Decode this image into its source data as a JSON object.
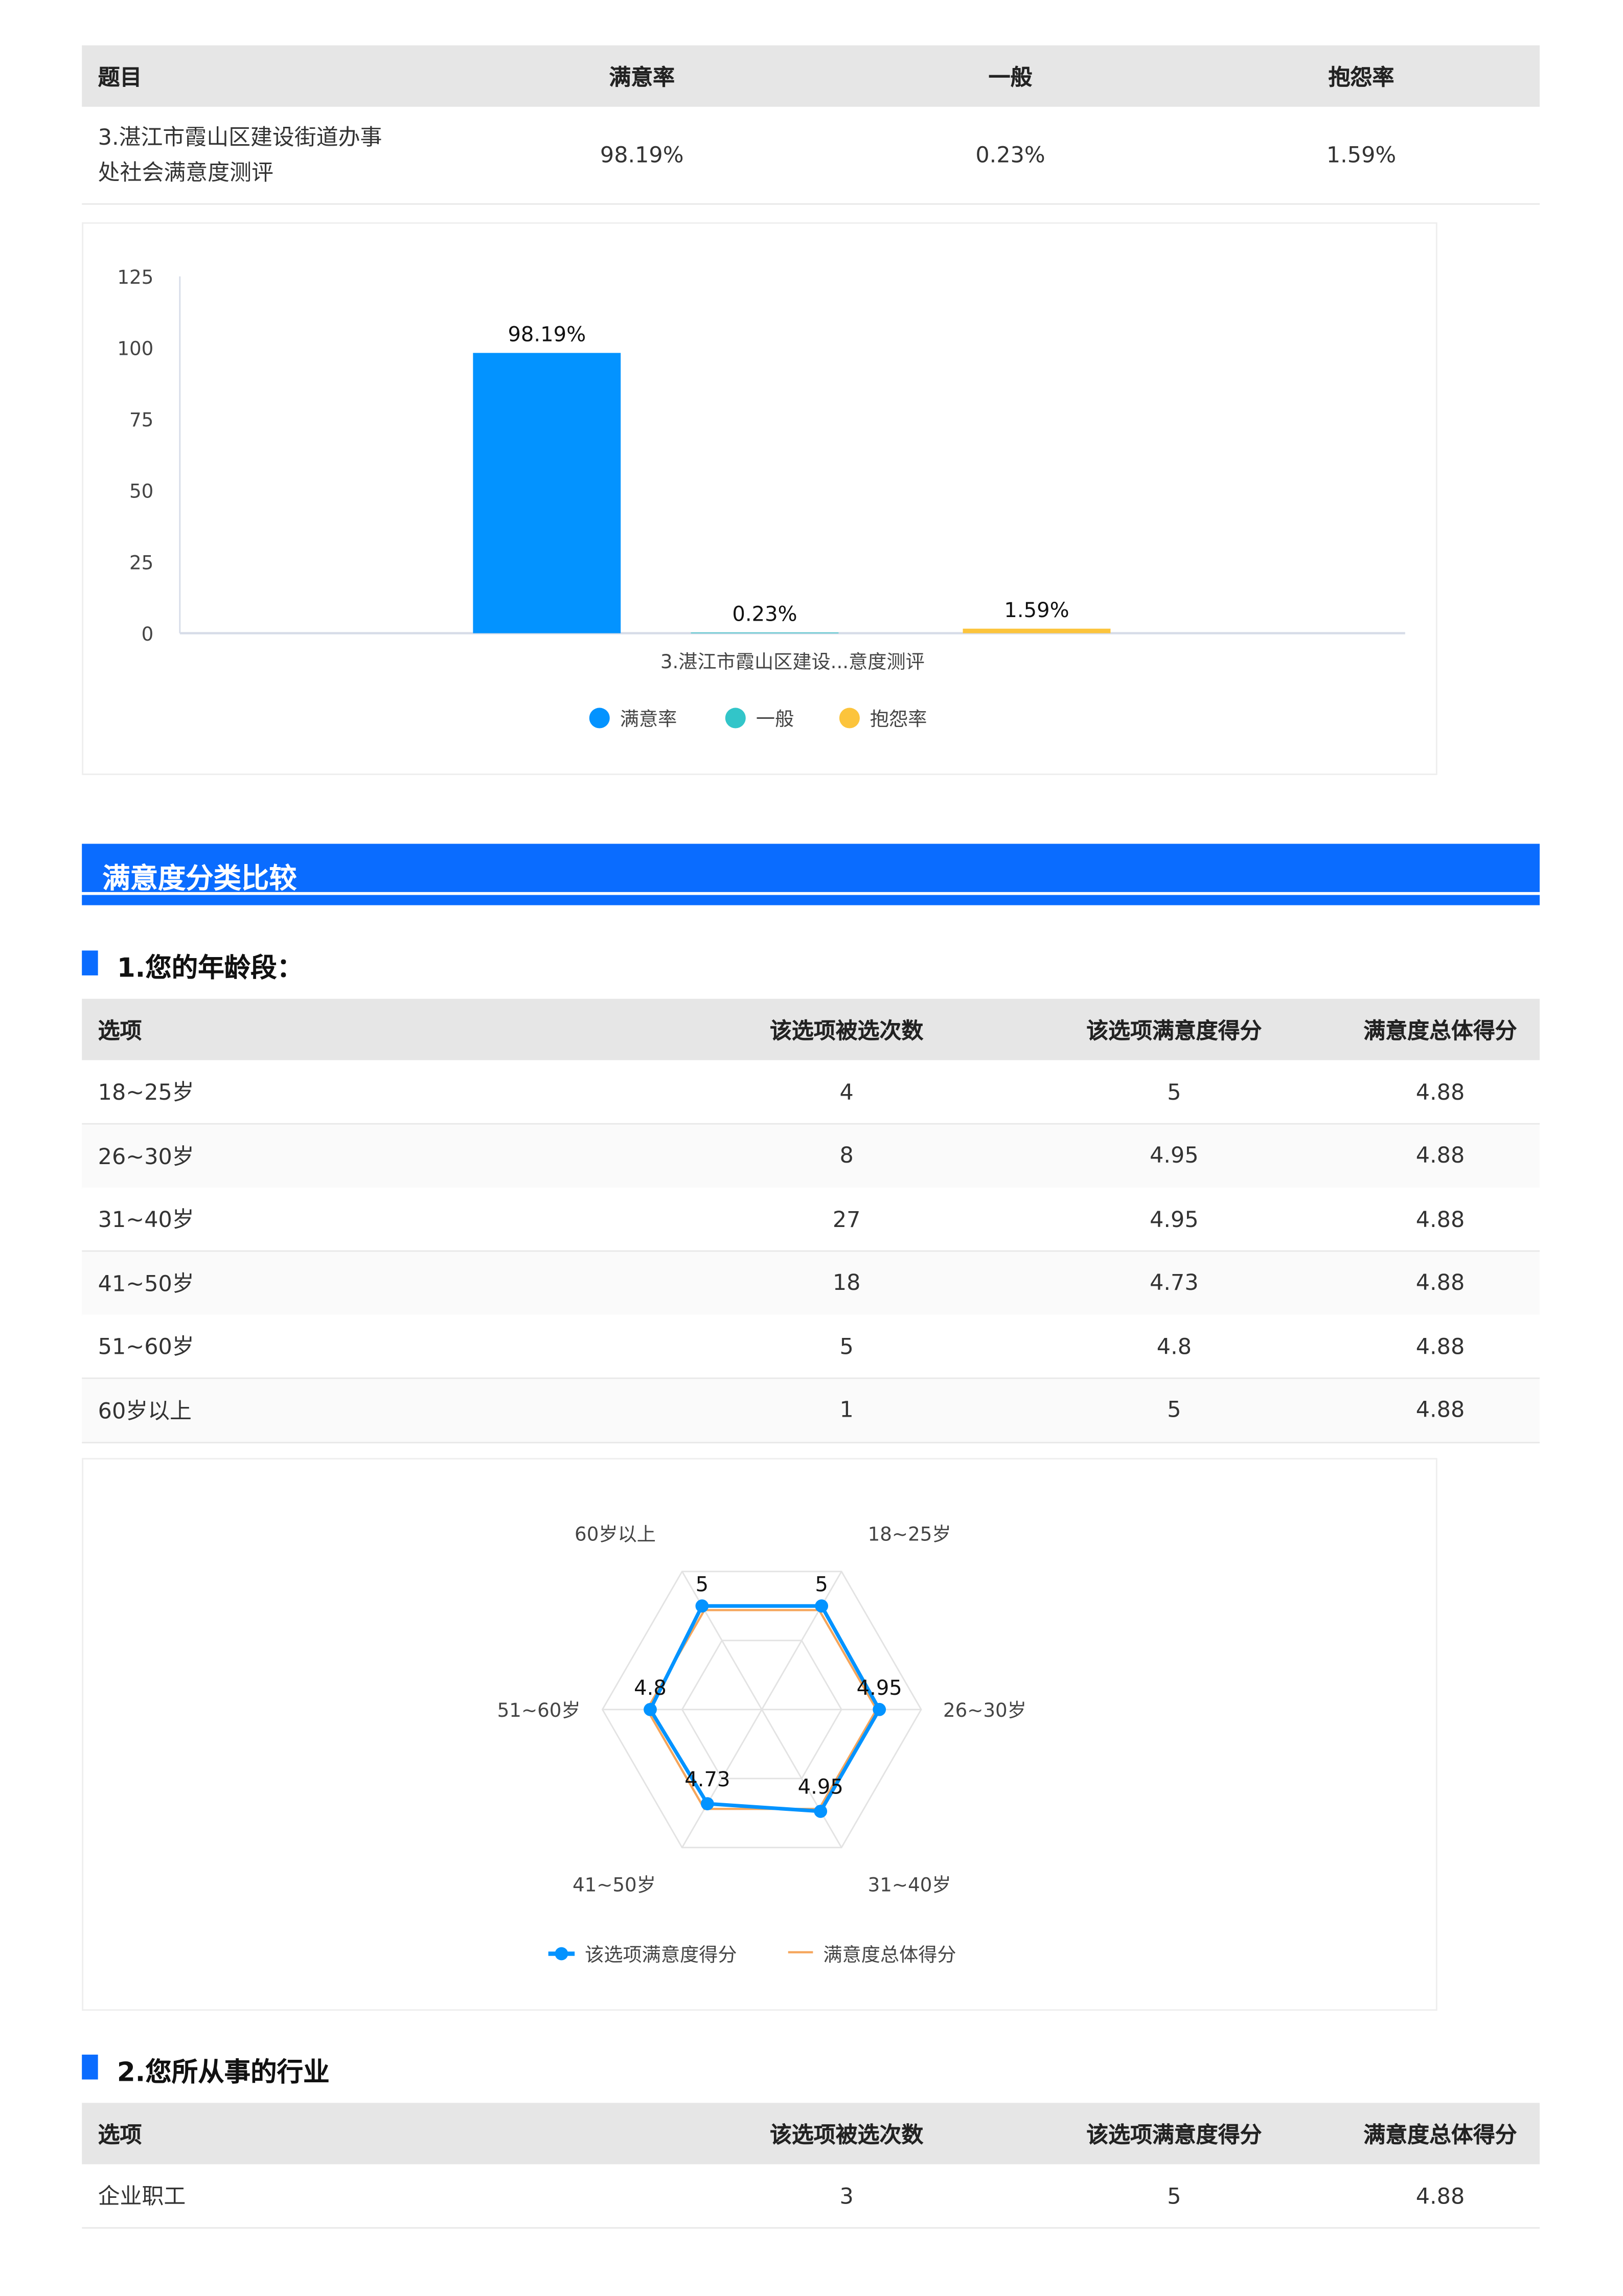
{
  "summary_table": {
    "headers": [
      "题目",
      "满意率",
      "一般",
      "抱怨率"
    ],
    "row": {
      "title_line1": "3.湛江市霞山区建设街道办事",
      "title_line2": "处社会满意度测评",
      "satisfied": "98.19%",
      "neutral": "0.23%",
      "complaint": "1.59%"
    }
  },
  "chart_data": [
    {
      "type": "bar",
      "categories": [
        "3.湛江市霞山区建设...意度测评"
      ],
      "series": [
        {
          "name": "满意率",
          "values": [
            98.19
          ],
          "label": "98.19%",
          "color": "#0393ff"
        },
        {
          "name": "一般",
          "values": [
            0.23
          ],
          "label": "0.23%",
          "color": "#32c5c9"
        },
        {
          "name": "抱怨率",
          "values": [
            1.59
          ],
          "label": "1.59%",
          "color": "#fcc43c"
        }
      ],
      "yticks": [
        "0",
        "25",
        "50",
        "75",
        "100",
        "125"
      ],
      "ylim": [
        0,
        125
      ],
      "legend": "bottom"
    },
    {
      "type": "radar",
      "axes": [
        "18~25岁",
        "26~30岁",
        "31~40岁",
        "41~50岁",
        "51~60岁",
        "60岁以上"
      ],
      "series": [
        {
          "name": "该选项满意度得分",
          "values": [
            5,
            4.95,
            4.95,
            4.73,
            4.8,
            5
          ],
          "labels": [
            "5",
            "4.95",
            "4.95",
            "4.73",
            "4.8",
            "5"
          ],
          "color": "#0393ff"
        },
        {
          "name": "满意度总体得分",
          "values": [
            4.88,
            4.88,
            4.88,
            4.88,
            4.88,
            4.88
          ],
          "color": "#f5a55b"
        }
      ],
      "range": [
        2,
        6
      ],
      "legend": "bottom"
    }
  ],
  "section": {
    "title": "满意度分类比较"
  },
  "q1": {
    "title": "1.您的年龄段：",
    "headers": [
      "选项",
      "该选项被选次数",
      "该选项满意度得分",
      "满意度总体得分"
    ],
    "rows": [
      [
        "18~25岁",
        "4",
        "5",
        "4.88"
      ],
      [
        "26~30岁",
        "8",
        "4.95",
        "4.88"
      ],
      [
        "31~40岁",
        "27",
        "4.95",
        "4.88"
      ],
      [
        "41~50岁",
        "18",
        "4.73",
        "4.88"
      ],
      [
        "51~60岁",
        "5",
        "4.8",
        "4.88"
      ],
      [
        "60岁以上",
        "1",
        "5",
        "4.88"
      ]
    ]
  },
  "q2": {
    "title": "2.您所从事的行业",
    "headers": [
      "选项",
      "该选项被选次数",
      "该选项满意度得分",
      "满意度总体得分"
    ],
    "rows": [
      [
        "企业职工",
        "3",
        "5",
        "4.88"
      ]
    ]
  }
}
